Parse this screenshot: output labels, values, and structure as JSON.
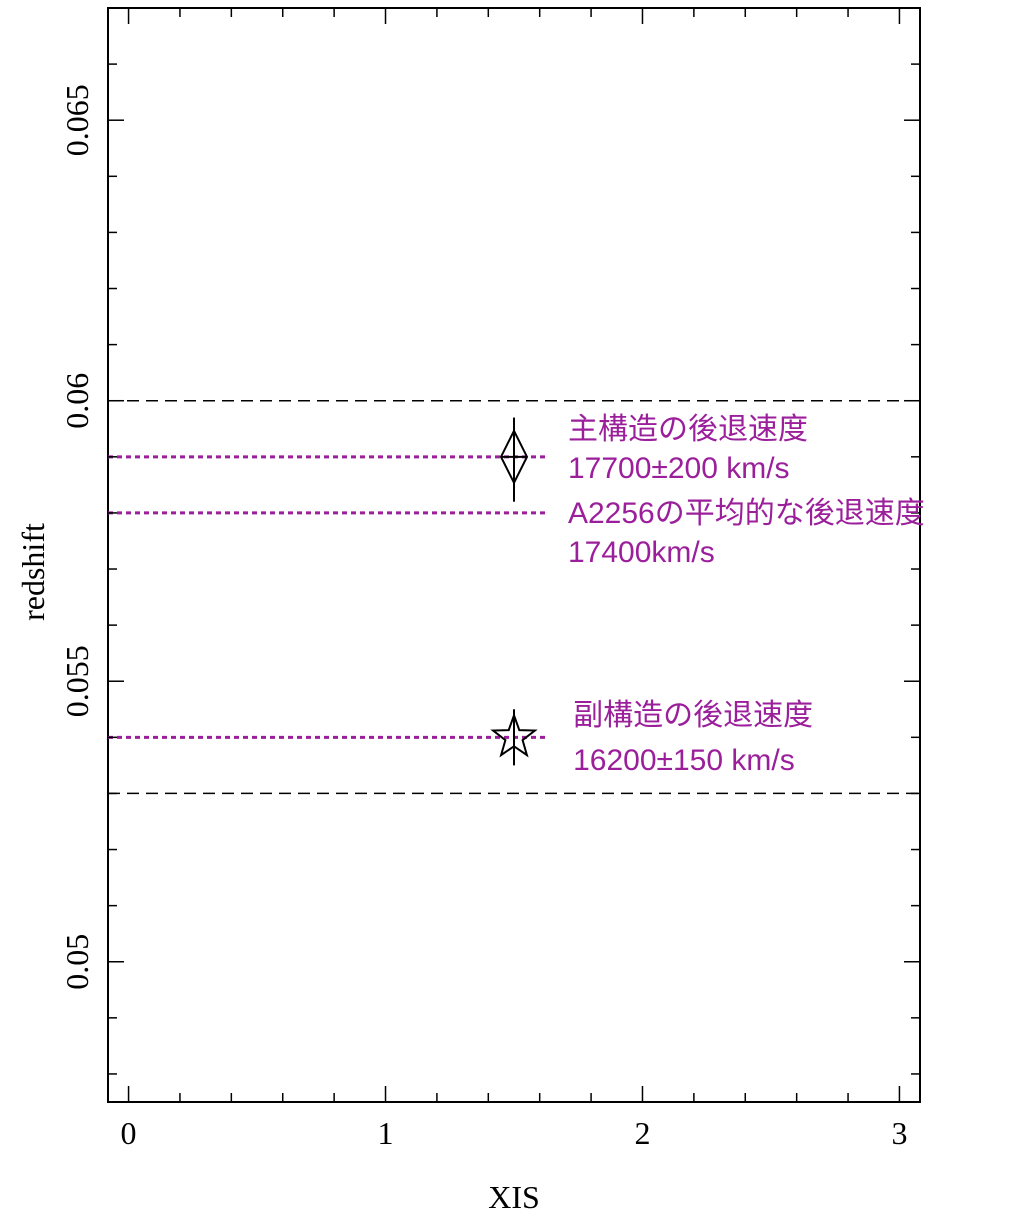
{
  "chart_data": {
    "type": "scatter",
    "title": "",
    "xlabel": "XIS",
    "ylabel": "redshift",
    "xlim": [
      -0.08,
      3.08
    ],
    "ylim": [
      0.0475,
      0.067
    ],
    "grid": false,
    "x_ticks": {
      "major": [
        0,
        1,
        2,
        3
      ],
      "labels": [
        "0",
        "1",
        "2",
        "3"
      ],
      "minor_step": 0.2
    },
    "y_ticks": {
      "major": [
        0.05,
        0.055,
        0.06,
        0.065
      ],
      "labels": [
        "0.05",
        "0.055",
        "0.06",
        "0.065"
      ],
      "minor_step": 0.001
    },
    "points": [
      {
        "x": 1.5,
        "y": 0.059,
        "y_low": 0.0582,
        "y_high": 0.0597,
        "marker": "diamond",
        "color": "#000000"
      },
      {
        "x": 1.5,
        "y": 0.054,
        "y_low": 0.0535,
        "y_high": 0.0545,
        "marker": "star",
        "color": "#000000"
      }
    ],
    "reference_lines": [
      {
        "y": 0.06,
        "style": "dashed",
        "color": "#000000",
        "x_start": -0.08,
        "x_end": 3.08
      },
      {
        "y": 0.053,
        "style": "dashed",
        "color": "#000000",
        "x_start": -0.08,
        "x_end": 3.08
      },
      {
        "y": 0.059,
        "style": "dotted",
        "color": "#9b1f9b",
        "x_start": -0.08,
        "x_end": 1.63
      },
      {
        "y": 0.058,
        "style": "dotted",
        "color": "#9b1f9b",
        "x_start": -0.08,
        "x_end": 1.63
      },
      {
        "y": 0.054,
        "style": "dotted",
        "color": "#9b1f9b",
        "x_start": -0.08,
        "x_end": 1.63
      }
    ],
    "annotations": [
      {
        "text": "主構造の後退速度",
        "x": 1.71,
        "y": 0.0595,
        "color": "#9b1f9b"
      },
      {
        "text": "17700±200 km/s",
        "x": 1.71,
        "y": 0.0588,
        "color": "#9b1f9b"
      },
      {
        "text": "A2256の平均的な後退速度",
        "x": 1.71,
        "y": 0.058,
        "color": "#9b1f9b"
      },
      {
        "text": "17400km/s",
        "x": 1.71,
        "y": 0.0573,
        "color": "#9b1f9b"
      },
      {
        "text": "副構造の後退速度",
        "x": 1.73,
        "y": 0.0544,
        "color": "#9b1f9b"
      },
      {
        "text": "16200±150 km/s",
        "x": 1.73,
        "y": 0.0536,
        "color": "#9b1f9b"
      }
    ]
  }
}
